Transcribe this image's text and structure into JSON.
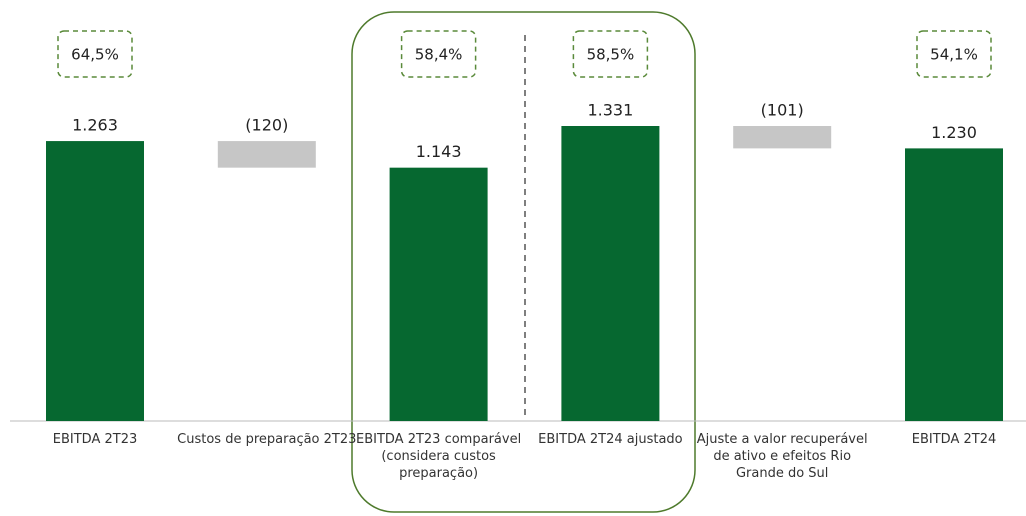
{
  "chart_data": {
    "type": "waterfall",
    "categories": [
      "EBITDA 2T23",
      "Custos de preparação 2T23",
      "EBITDA 2T23 comparável (considera custos preparação)",
      "EBITDA 2T24 ajustado",
      "Ajuste a valor recuperável de ativo e efeitos Rio Grande do Sul",
      "EBITDA 2T24"
    ],
    "measure": [
      "absolute",
      "relative",
      "absolute",
      "absolute",
      "relative",
      "absolute"
    ],
    "values": [
      1263,
      -120,
      1143,
      1331,
      -101,
      1230
    ],
    "value_labels": [
      "1.263",
      "(120)",
      "1.143",
      "1.331",
      "(101)",
      "1.230"
    ],
    "margins": {
      "values": [
        64.5,
        null,
        58.4,
        58.5,
        null,
        54.1
      ],
      "labels": [
        "64,5%",
        null,
        "58,4%",
        "58,5%",
        null,
        "54,1%"
      ]
    },
    "colors": {
      "absolute": "#066830",
      "relative": "#c6c6c6"
    }
  }
}
